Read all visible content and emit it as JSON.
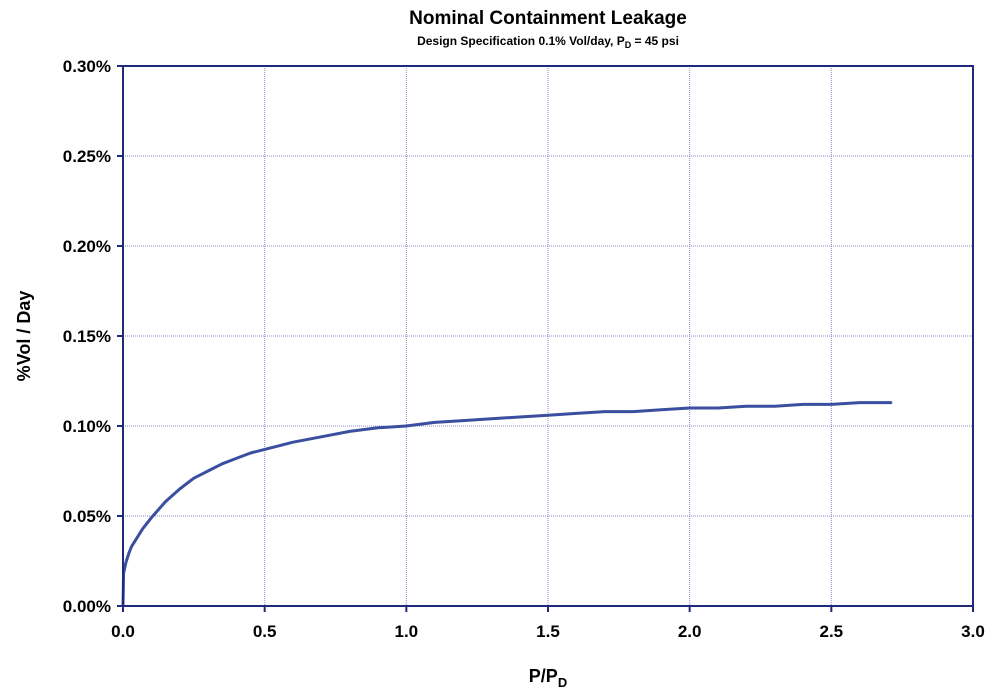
{
  "chart_data": {
    "type": "line",
    "title": "Nominal Containment Leakage",
    "subtitle": {
      "prefix": "Design Specification 0.1% Vol/day, P",
      "subscript": "D",
      "suffix": " = 45 psi"
    },
    "xlabel": {
      "main": "P/P",
      "subscript": "D"
    },
    "ylabel": "%Vol / Day",
    "xlim": [
      0,
      3.0
    ],
    "ylim": [
      0,
      0.3
    ],
    "x_ticks": [
      {
        "value": 0.0,
        "label": "0.0"
      },
      {
        "value": 0.5,
        "label": "0.5"
      },
      {
        "value": 1.0,
        "label": "1.0"
      },
      {
        "value": 1.5,
        "label": "1.5"
      },
      {
        "value": 2.0,
        "label": "2.0"
      },
      {
        "value": 2.5,
        "label": "2.5"
      },
      {
        "value": 3.0,
        "label": "3.0"
      }
    ],
    "y_ticks": [
      {
        "value": 0.0,
        "label": "0.00%"
      },
      {
        "value": 0.05,
        "label": "0.05%"
      },
      {
        "value": 0.1,
        "label": "0.10%"
      },
      {
        "value": 0.15,
        "label": "0.15%"
      },
      {
        "value": 0.2,
        "label": "0.20%"
      },
      {
        "value": 0.25,
        "label": "0.25%"
      },
      {
        "value": 0.3,
        "label": "0.30%"
      }
    ],
    "grid": true,
    "series": [
      {
        "color": "#3a4fa0",
        "x": [
          0,
          0.002,
          0.01,
          0.02,
          0.03,
          0.05,
          0.07,
          0.1,
          0.15,
          0.2,
          0.25,
          0.3,
          0.35,
          0.4,
          0.45,
          0.5,
          0.6,
          0.7,
          0.8,
          0.9,
          1.0,
          1.1,
          1.2,
          1.3,
          1.4,
          1.5,
          1.6,
          1.7,
          1.8,
          1.9,
          2.0,
          2.1,
          2.2,
          2.3,
          2.4,
          2.5,
          2.6,
          2.71
        ],
        "y": [
          0,
          0.018,
          0.024,
          0.029,
          0.033,
          0.038,
          0.043,
          0.049,
          0.058,
          0.065,
          0.071,
          0.075,
          0.079,
          0.082,
          0.085,
          0.087,
          0.091,
          0.094,
          0.097,
          0.099,
          0.1,
          0.102,
          0.103,
          0.104,
          0.105,
          0.106,
          0.107,
          0.108,
          0.108,
          0.109,
          0.11,
          0.11,
          0.111,
          0.111,
          0.112,
          0.112,
          0.113,
          0.113
        ]
      }
    ]
  }
}
